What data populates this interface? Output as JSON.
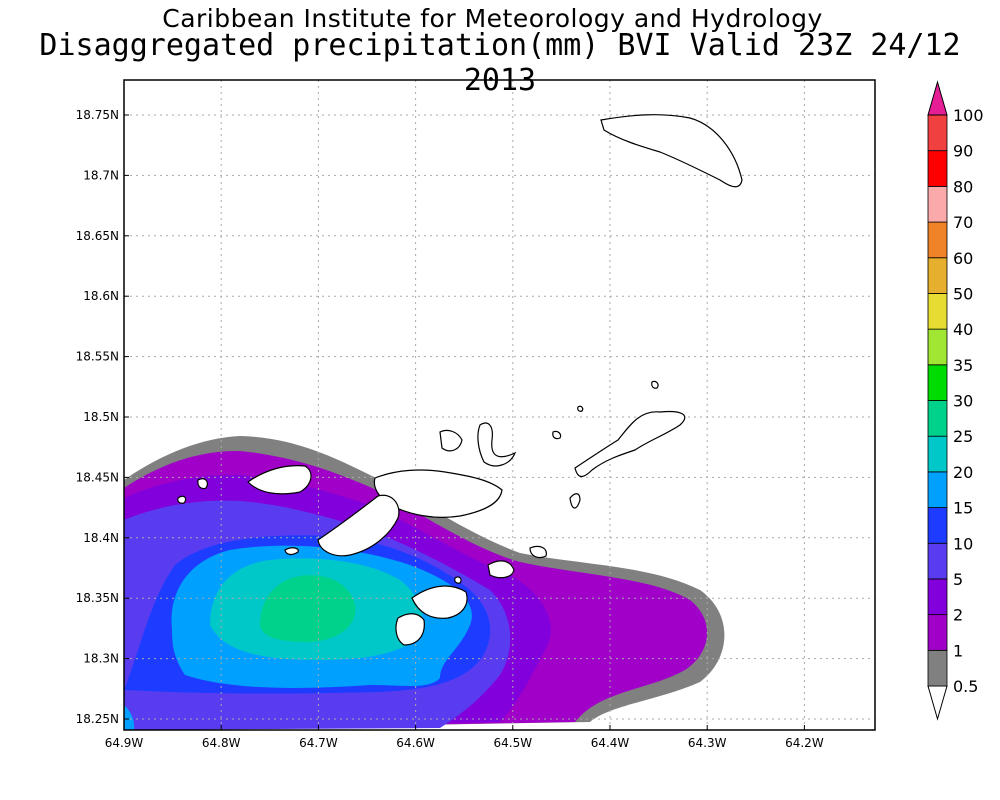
{
  "title_line1": "Caribbean Institute for Meteorology and Hydrology",
  "title_line2": "Disaggregated precipitation(mm) BVI Valid 23Z 24/12 2013",
  "map": {
    "lon_labels": [
      "64.9W",
      "64.8W",
      "64.7W",
      "64.6W",
      "64.5W",
      "64.4W",
      "64.3W",
      "64.2W"
    ],
    "lat_labels": [
      "18.75N",
      "18.7N",
      "18.65N",
      "18.6N",
      "18.55N",
      "18.5N",
      "18.45N",
      "18.4N",
      "18.35N",
      "18.3N",
      "18.25N"
    ],
    "grid": true
  },
  "colorbar": {
    "levels": [
      "0.5",
      "1",
      "2",
      "5",
      "10",
      "15",
      "20",
      "25",
      "30",
      "35",
      "40",
      "50",
      "60",
      "70",
      "80",
      "90",
      "100"
    ],
    "colors": [
      "#808080",
      "#a000c8",
      "#8200dc",
      "#5a3cf0",
      "#1e3cff",
      "#00a0ff",
      "#00c8c8",
      "#00d28c",
      "#00dc00",
      "#a0e632",
      "#e6dc32",
      "#e6af2d",
      "#f08228",
      "#faaaaa",
      "#ff0000",
      "#f04040",
      "#e61e96"
    ]
  },
  "legend": {
    "levels": [
      "0.5",
      "1",
      "2",
      "5",
      "10",
      "15",
      "20",
      "25",
      "30",
      "35",
      "40",
      "50",
      "60",
      "70",
      "80",
      "90",
      "100"
    ],
    "colors": [
      "#808080",
      "#a000c8",
      "#8200dc",
      "#5a3cf0",
      "#1e3cff",
      "#00a0ff",
      "#00c8c8",
      "#00d28c",
      "#00dc00",
      "#a0e632",
      "#e6dc32",
      "#e6af2d",
      "#f08228",
      "#faaaaa",
      "#ff0000",
      "#f04040",
      "#e61e96"
    ]
  }
}
